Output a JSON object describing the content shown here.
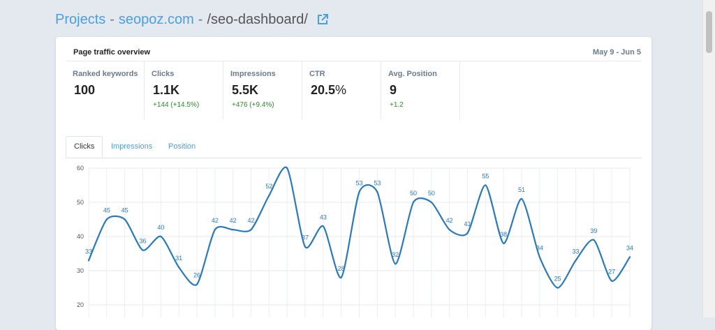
{
  "header": {
    "projects_label": "Projects",
    "sep1": "-",
    "domain": "seopoz.com",
    "sep2": "-",
    "path": "/seo-dashboard/"
  },
  "card": {
    "title": "Page traffic overview",
    "date_range": "May 9 - Jun 5"
  },
  "metrics": [
    {
      "label": "Ranked keywords",
      "value": "100",
      "delta": ""
    },
    {
      "label": "Clicks",
      "value": "1.1K",
      "delta": "+144 (+14.5%)"
    },
    {
      "label": "Impressions",
      "value": "5.5K",
      "delta": "+476 (+9.4%)"
    },
    {
      "label": "CTR",
      "value": "20.5",
      "unit": "%",
      "delta": ""
    },
    {
      "label": "Avg. Position",
      "value": "9",
      "delta": "+1.2"
    }
  ],
  "tabs": [
    {
      "label": "Clicks",
      "active": true
    },
    {
      "label": "Impressions",
      "active": false
    },
    {
      "label": "Position",
      "active": false
    }
  ],
  "colors": {
    "link": "#4a9fe0",
    "line": "#2a7ab9",
    "delta_positive": "#2e8b2e"
  },
  "chart_data": {
    "type": "line",
    "series": [
      {
        "values": [
          33,
          45,
          45,
          36,
          40,
          31,
          26,
          42,
          42,
          42,
          52,
          60,
          37,
          43,
          28,
          53,
          53,
          32,
          50,
          50,
          42,
          41,
          55,
          38,
          51,
          34,
          25,
          33,
          39,
          27,
          34
        ]
      }
    ],
    "point_labels": [
      "33",
      "45",
      "45",
      "36",
      "40",
      "31",
      "26",
      "42",
      "42",
      "42",
      "52",
      "",
      "37",
      "43",
      "28",
      "53",
      "53",
      "32",
      "50",
      "50",
      "42",
      "41",
      "55",
      "38",
      "51",
      "34",
      "25",
      "33",
      "39",
      "27",
      "34"
    ],
    "ylim": [
      20,
      60
    ],
    "yticks": [
      "60",
      "50",
      "40",
      "30",
      "20"
    ],
    "grid": true
  }
}
